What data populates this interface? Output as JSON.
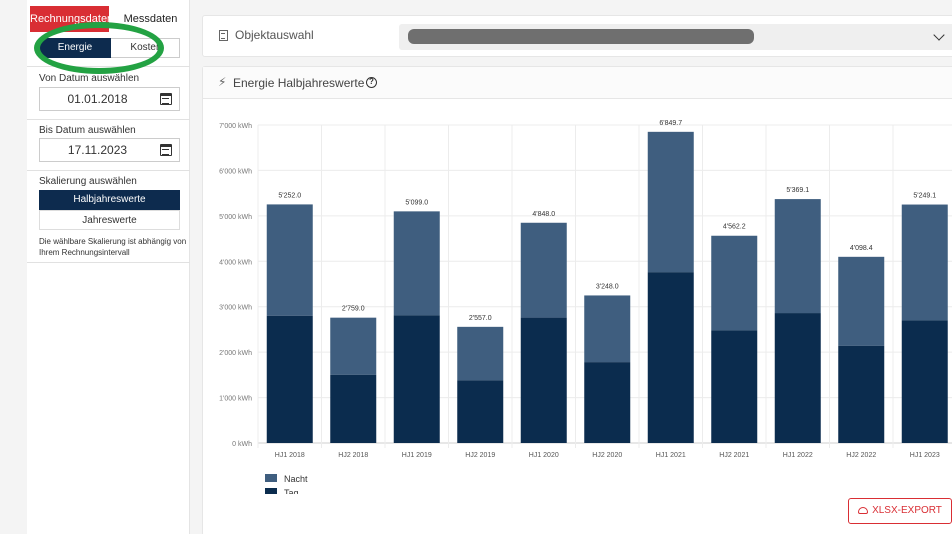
{
  "sidebar": {
    "tabs": [
      {
        "label": "Rechnungsdaten"
      },
      {
        "label": "Messdaten"
      }
    ],
    "mode": [
      {
        "label": "Energie"
      },
      {
        "label": "Kosten"
      }
    ],
    "from_label": "Von Datum auswählen",
    "from_value": "01.01.2018",
    "to_label": "Bis Datum auswählen",
    "to_value": "17.11.2023",
    "scale_label": "Skalierung auswählen",
    "scale_options": [
      {
        "label": "Halbjahreswerte"
      },
      {
        "label": "Jahreswerte"
      }
    ],
    "scale_note": "Die wählbare Skalierung ist abhängig von Ihrem Rechnungsintervall"
  },
  "object": {
    "title": "Objektauswahl"
  },
  "chart_card": {
    "title": "Energie Halbjahreswerte",
    "help": "?",
    "export_label": "XLSX-EXPORT"
  },
  "colors": {
    "tag": "#0b2c4e",
    "nacht": "#3f5e7f",
    "accent": "#d92e34",
    "highlight": "#23a243"
  },
  "chart_data": {
    "type": "bar",
    "stacked": true,
    "unit": "kWh",
    "categories": [
      "HJ1 2018",
      "HJ2 2018",
      "HJ1 2019",
      "HJ2 2019",
      "HJ1 2020",
      "HJ2 2020",
      "HJ1 2021",
      "HJ2 2021",
      "HJ1 2022",
      "HJ2 2022",
      "HJ1 2023"
    ],
    "series": [
      {
        "name": "Tag",
        "values": [
          2800,
          1500,
          2810,
          1380,
          2760,
          1780,
          3760,
          2480,
          2860,
          2140,
          2700
        ]
      },
      {
        "name": "Nacht",
        "values": [
          2452.0,
          1259.0,
          2289.0,
          1177.0,
          2088.0,
          1468.0,
          3089.7,
          2082.2,
          2509.1,
          1958.4,
          2549.1
        ]
      }
    ],
    "totals": [
      "5'252.0",
      "2'759.0",
      "5'099.0",
      "2'557.0",
      "4'848.0",
      "3'248.0",
      "6'849.7",
      "4'562.2",
      "5'369.1",
      "4'098.4",
      "5'249.1"
    ],
    "ylim": [
      0,
      7000
    ],
    "yticks": [
      "0 kWh",
      "1'000 kWh",
      "2'000 kWh",
      "3'000 kWh",
      "4'000 kWh",
      "5'000 kWh",
      "6'000 kWh",
      "7'000 kWh"
    ],
    "legend": [
      "Nacht",
      "Tag"
    ],
    "legend_position": "bottom-left",
    "grid": true
  }
}
